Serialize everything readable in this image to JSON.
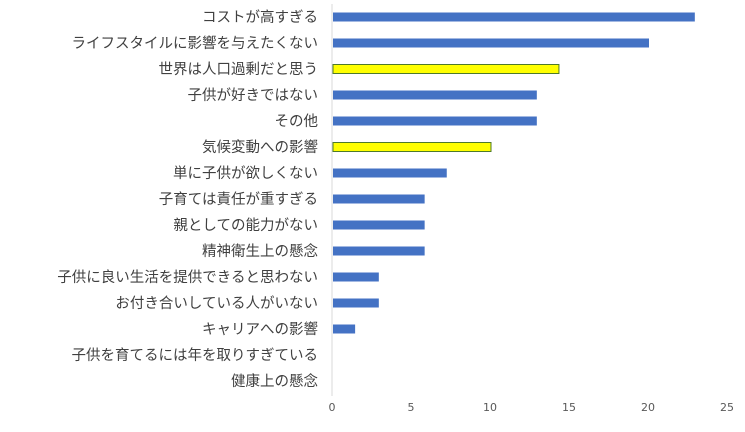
{
  "chart_data": {
    "type": "bar",
    "orientation": "horizontal",
    "title": "",
    "xlabel": "",
    "ylabel": "",
    "xlim": [
      0,
      25
    ],
    "x_ticks": [
      0,
      5,
      10,
      15,
      20,
      25
    ],
    "grid": false,
    "legend": "none",
    "colors": {
      "default": "#4472C4",
      "highlight": "#FFFF00",
      "highlight_border": "#4E7A2A"
    },
    "categories": [
      "コストが高すぎる",
      "ライフスタイルに影響を与えたくない",
      "世界は人口過剰だと思う",
      "子供が好きではない",
      "その他",
      "気候変動への影響",
      "単に子供が欲しくない",
      "子育ては責任が重すぎる",
      "親としての能力がない",
      "精神衛生上の懸念",
      "子供に良い生活を提供できると思わない",
      "お付き合いしている人がいない",
      "キャリアへの影響",
      "子供を育てるには年を取りすぎている",
      "健康上の懸念"
    ],
    "values": [
      22.9,
      20.0,
      14.3,
      12.9,
      12.9,
      10.0,
      7.2,
      5.8,
      5.8,
      5.8,
      2.9,
      2.9,
      1.4,
      0,
      0
    ],
    "highlighted": [
      false,
      false,
      true,
      false,
      false,
      true,
      false,
      false,
      false,
      false,
      false,
      false,
      false,
      false,
      false
    ]
  }
}
